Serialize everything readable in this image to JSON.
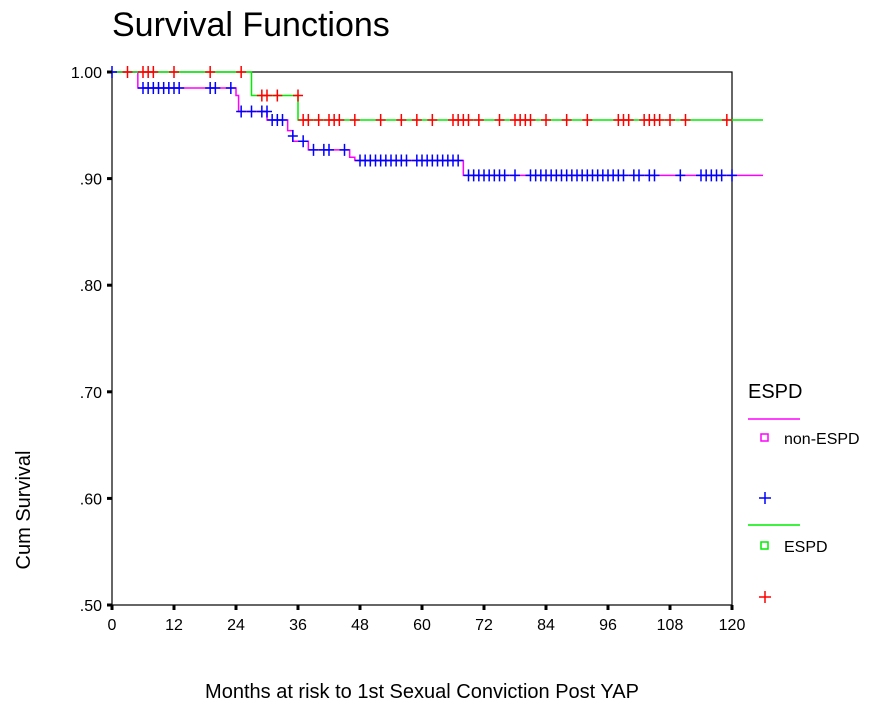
{
  "chart_data": {
    "type": "line",
    "title": "Survival Functions",
    "xlabel": "Months at risk to 1st Sexual Conviction Post YAP",
    "ylabel": "Cum Survival",
    "xlim": [
      0,
      126
    ],
    "ylim": [
      0.5,
      1.0
    ],
    "x_ticks": [
      0,
      12,
      24,
      36,
      48,
      60,
      72,
      84,
      96,
      108,
      120
    ],
    "y_ticks": [
      0.5,
      0.6,
      0.7,
      0.8,
      0.9,
      1.0
    ],
    "y_tick_labels": [
      ".50",
      ".60",
      ".70",
      ".80",
      ".90",
      "1.00"
    ],
    "legend_title": "ESPD",
    "legend_position": "right",
    "series": [
      {
        "name": "non-ESPD",
        "color": "#ff00ff",
        "censor_color": "#0000ff",
        "steps": [
          [
            0,
            1.0
          ],
          [
            5,
            0.985
          ],
          [
            24,
            0.978
          ],
          [
            24.5,
            0.963
          ],
          [
            30,
            0.955
          ],
          [
            34,
            0.945
          ],
          [
            35,
            0.935
          ],
          [
            38,
            0.927
          ],
          [
            46,
            0.92
          ],
          [
            47,
            0.917
          ],
          [
            68,
            0.903
          ],
          [
            126,
            0.903
          ]
        ],
        "censored": [
          [
            0,
            1.0
          ],
          [
            6,
            0.985
          ],
          [
            7,
            0.985
          ],
          [
            8,
            0.985
          ],
          [
            9,
            0.985
          ],
          [
            10,
            0.985
          ],
          [
            11,
            0.985
          ],
          [
            12,
            0.985
          ],
          [
            13,
            0.985
          ],
          [
            19,
            0.985
          ],
          [
            20,
            0.985
          ],
          [
            23,
            0.985
          ],
          [
            25,
            0.963
          ],
          [
            27,
            0.963
          ],
          [
            29,
            0.963
          ],
          [
            30,
            0.963
          ],
          [
            31,
            0.955
          ],
          [
            32,
            0.955
          ],
          [
            33,
            0.955
          ],
          [
            35,
            0.94
          ],
          [
            37,
            0.935
          ],
          [
            39,
            0.927
          ],
          [
            41,
            0.927
          ],
          [
            42,
            0.927
          ],
          [
            45,
            0.927
          ],
          [
            48,
            0.917
          ],
          [
            49,
            0.917
          ],
          [
            50,
            0.917
          ],
          [
            51,
            0.917
          ],
          [
            52,
            0.917
          ],
          [
            53,
            0.917
          ],
          [
            54,
            0.917
          ],
          [
            55,
            0.917
          ],
          [
            56,
            0.917
          ],
          [
            57,
            0.917
          ],
          [
            59,
            0.917
          ],
          [
            60,
            0.917
          ],
          [
            61,
            0.917
          ],
          [
            62,
            0.917
          ],
          [
            63,
            0.917
          ],
          [
            64,
            0.917
          ],
          [
            65,
            0.917
          ],
          [
            66,
            0.917
          ],
          [
            67,
            0.917
          ],
          [
            69,
            0.903
          ],
          [
            70,
            0.903
          ],
          [
            71,
            0.903
          ],
          [
            72,
            0.903
          ],
          [
            73,
            0.903
          ],
          [
            74,
            0.903
          ],
          [
            75,
            0.903
          ],
          [
            76,
            0.903
          ],
          [
            78,
            0.903
          ],
          [
            81,
            0.903
          ],
          [
            82,
            0.903
          ],
          [
            83,
            0.903
          ],
          [
            84,
            0.903
          ],
          [
            85,
            0.903
          ],
          [
            86,
            0.903
          ],
          [
            87,
            0.903
          ],
          [
            88,
            0.903
          ],
          [
            89,
            0.903
          ],
          [
            90,
            0.903
          ],
          [
            91,
            0.903
          ],
          [
            92,
            0.903
          ],
          [
            93,
            0.903
          ],
          [
            94,
            0.903
          ],
          [
            95,
            0.903
          ],
          [
            96,
            0.903
          ],
          [
            97,
            0.903
          ],
          [
            98,
            0.903
          ],
          [
            99,
            0.903
          ],
          [
            101,
            0.903
          ],
          [
            102,
            0.903
          ],
          [
            104,
            0.903
          ],
          [
            105,
            0.903
          ],
          [
            110,
            0.903
          ],
          [
            114,
            0.903
          ],
          [
            115,
            0.903
          ],
          [
            116,
            0.903
          ],
          [
            117,
            0.903
          ],
          [
            118,
            0.903
          ],
          [
            120,
            0.903
          ]
        ]
      },
      {
        "name": "ESPD",
        "color": "#00ee00",
        "censor_color": "#ff0000",
        "steps": [
          [
            0,
            1.0
          ],
          [
            27,
            0.978
          ],
          [
            36,
            0.955
          ],
          [
            126,
            0.955
          ]
        ],
        "censored": [
          [
            3,
            1.0
          ],
          [
            6,
            1.0
          ],
          [
            7,
            1.0
          ],
          [
            8,
            1.0
          ],
          [
            12,
            1.0
          ],
          [
            19,
            1.0
          ],
          [
            25,
            1.0
          ],
          [
            29,
            0.978
          ],
          [
            30,
            0.978
          ],
          [
            32,
            0.978
          ],
          [
            36,
            0.978
          ],
          [
            37,
            0.955
          ],
          [
            38,
            0.955
          ],
          [
            40,
            0.955
          ],
          [
            42,
            0.955
          ],
          [
            43,
            0.955
          ],
          [
            44,
            0.955
          ],
          [
            47,
            0.955
          ],
          [
            52,
            0.955
          ],
          [
            56,
            0.955
          ],
          [
            59,
            0.955
          ],
          [
            62,
            0.955
          ],
          [
            66,
            0.955
          ],
          [
            67,
            0.955
          ],
          [
            68,
            0.955
          ],
          [
            69,
            0.955
          ],
          [
            71,
            0.955
          ],
          [
            75,
            0.955
          ],
          [
            78,
            0.955
          ],
          [
            79,
            0.955
          ],
          [
            80,
            0.955
          ],
          [
            81,
            0.955
          ],
          [
            84,
            0.955
          ],
          [
            88,
            0.955
          ],
          [
            92,
            0.955
          ],
          [
            98,
            0.955
          ],
          [
            99,
            0.955
          ],
          [
            100,
            0.955
          ],
          [
            103,
            0.955
          ],
          [
            104,
            0.955
          ],
          [
            105,
            0.955
          ],
          [
            106,
            0.955
          ],
          [
            108,
            0.955
          ],
          [
            111,
            0.955
          ],
          [
            119,
            0.955
          ]
        ]
      }
    ]
  }
}
